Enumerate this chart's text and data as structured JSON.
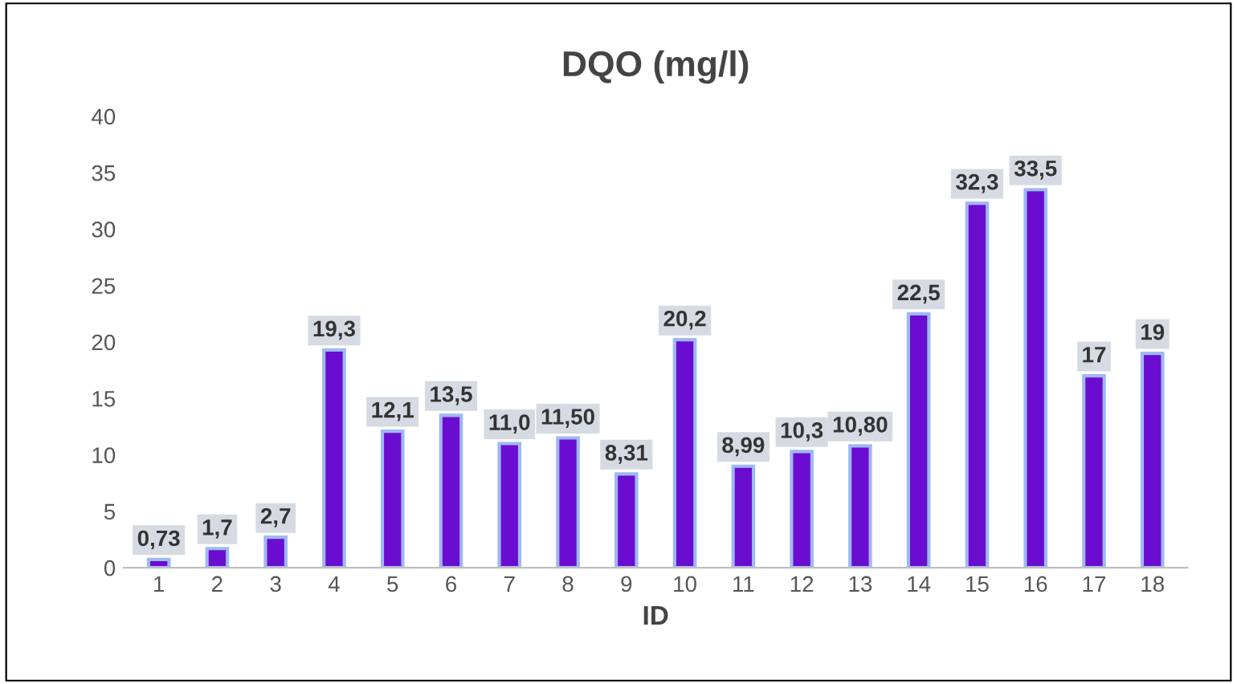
{
  "chart_data": {
    "type": "bar",
    "title": "DQO (mg/l)",
    "xlabel": "ID",
    "categories": [
      "1",
      "2",
      "3",
      "4",
      "5",
      "6",
      "7",
      "8",
      "9",
      "10",
      "11",
      "12",
      "13",
      "14",
      "15",
      "16",
      "17",
      "18"
    ],
    "values": [
      0.73,
      1.7,
      2.7,
      19.3,
      12.1,
      13.5,
      11.0,
      11.5,
      8.31,
      20.2,
      8.99,
      10.3,
      10.8,
      22.5,
      32.3,
      33.5,
      17,
      19
    ],
    "value_labels": [
      "0,73",
      "1,7",
      "2,7",
      "19,3",
      "12,1",
      "13,5",
      "11,0",
      "11,50",
      "8,31",
      "20,2",
      "8,99",
      "10,3",
      "10,80",
      "22,5",
      "32,3",
      "33,5",
      "17",
      "19"
    ],
    "color": "#6a0dd0",
    "ylim": [
      0,
      40
    ],
    "yticks": [
      0,
      5,
      10,
      15,
      20,
      25,
      30,
      35,
      40
    ],
    "grid": false,
    "legend": false
  }
}
